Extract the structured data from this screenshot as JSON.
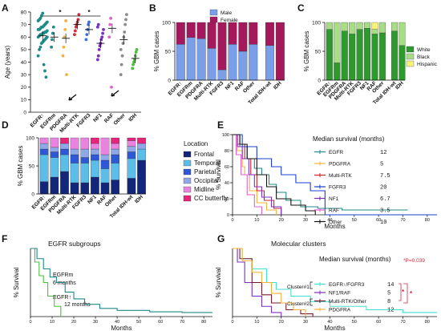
{
  "chart_data": [
    {
      "panel": "A",
      "type": "scatter",
      "ylabel": "Age (years)",
      "yticks": [
        0,
        10,
        20,
        30,
        40,
        50,
        60,
        70,
        80
      ],
      "ylim": [
        0,
        80
      ],
      "categories": [
        "EGFR↑",
        "EGFRm",
        "PDGFRA",
        "Multi-RTK",
        "FGFR3",
        "NF1",
        "RAF",
        "Other",
        "IDH"
      ],
      "colors": [
        "#1f8a86",
        "#1f8a86",
        "#f2b33d",
        "#d7263d",
        "#3c6fe0",
        "#7b2fbf",
        "#e35fcf",
        "#8a8a8a",
        "#48c23a"
      ],
      "means": [
        61,
        60,
        59,
        70,
        66,
        55,
        67,
        58,
        43
      ],
      "points": [
        [
          45,
          50,
          52,
          55,
          56,
          57,
          58,
          59,
          60,
          60,
          61,
          62,
          62,
          63,
          63,
          64,
          64,
          65,
          66,
          66,
          67,
          68,
          68,
          69,
          70,
          71,
          72,
          73,
          74,
          75,
          77,
          79,
          38,
          33,
          28
        ],
        [
          52,
          58,
          63,
          68
        ],
        [
          45,
          52,
          60,
          66,
          73,
          30
        ],
        [
          62,
          65,
          68,
          70,
          72,
          74,
          78
        ],
        [
          58,
          62,
          66,
          70,
          72
        ],
        [
          42,
          45,
          50,
          53,
          55,
          58,
          60,
          63,
          66,
          68,
          70
        ],
        [
          60,
          70,
          75,
          20
        ],
        [
          30,
          38,
          45,
          55,
          60,
          64,
          70,
          74,
          78,
          50
        ],
        [
          35,
          38,
          40,
          42,
          45,
          48,
          50
        ]
      ],
      "significance": "*"
    },
    {
      "panel": "B",
      "type": "bar",
      "ylabel": "% GBM cases",
      "yticks": [
        0,
        50,
        100
      ],
      "categories": [
        "EGFR↑",
        "EGFRm",
        "PDGFRA",
        "Multi-RTK",
        "FGFR3",
        "NF1",
        "RAF",
        "Other",
        "Total IDH-wt",
        "IDH"
      ],
      "series": [
        {
          "name": "Male",
          "color": "#7b9ee8",
          "values": [
            62,
            74,
            72,
            55,
            18,
            62,
            50,
            62,
            60,
            0
          ]
        },
        {
          "name": "Female",
          "color": "#a3195b",
          "values": [
            38,
            26,
            28,
            45,
            82,
            38,
            50,
            38,
            40,
            100
          ]
        }
      ]
    },
    {
      "panel": "C",
      "type": "bar",
      "ylabel": "% GBM cases",
      "yticks": [
        0,
        50,
        100
      ],
      "categories": [
        "EGFR↑",
        "EGFRm",
        "PDGFRA",
        "Multi-RTK",
        "FGFR3",
        "NF1",
        "RAF",
        "Other",
        "Total IDH-wt",
        "IDH"
      ],
      "series": [
        {
          "name": "White",
          "color": "#2e9a2e",
          "values": [
            88,
            30,
            85,
            80,
            88,
            90,
            80,
            82,
            85,
            60
          ]
        },
        {
          "name": "Black",
          "color": "#a8dd86",
          "values": [
            12,
            70,
            15,
            20,
            12,
            10,
            8,
            18,
            15,
            40
          ]
        },
        {
          "name": "Hispanic",
          "color": "#f6f27a",
          "values": [
            0,
            0,
            0,
            0,
            0,
            0,
            12,
            0,
            0,
            0
          ]
        }
      ]
    },
    {
      "panel": "D",
      "type": "bar",
      "ylabel": "% GBM cases",
      "yticks": [
        0,
        50,
        100
      ],
      "legend_title": "Location",
      "categories": [
        "EGFR↑",
        "EGFRm",
        "PDGFRA",
        "Multi-RTK",
        "FGFR3",
        "NF1",
        "RAF",
        "Other",
        "Total IDH-wt",
        "IDH"
      ],
      "series": [
        {
          "name": "Frontal",
          "color": "#13277a",
          "values": [
            22,
            30,
            40,
            20,
            20,
            30,
            20,
            25,
            28,
            60
          ]
        },
        {
          "name": "Temporal",
          "color": "#5bbde8",
          "values": [
            48,
            35,
            30,
            35,
            35,
            30,
            25,
            30,
            35,
            20
          ]
        },
        {
          "name": "Parietal",
          "color": "#2e58d6",
          "values": [
            10,
            10,
            10,
            15,
            10,
            10,
            15,
            15,
            12,
            0
          ]
        },
        {
          "name": "Occipital",
          "color": "#8ea8e8",
          "values": [
            10,
            8,
            10,
            10,
            15,
            10,
            10,
            10,
            10,
            10
          ]
        },
        {
          "name": "Midline",
          "color": "#e884e0",
          "values": [
            10,
            17,
            0,
            20,
            20,
            10,
            30,
            10,
            10,
            0
          ]
        },
        {
          "name": "CC butterfly",
          "color": "#e8247a",
          "values": [
            0,
            0,
            10,
            0,
            0,
            10,
            0,
            10,
            5,
            10
          ]
        }
      ]
    },
    {
      "panel": "E",
      "type": "line",
      "ylabel": "% Survival",
      "xlabel": "Months",
      "yticks": [
        0,
        20,
        40,
        60,
        80,
        100
      ],
      "xticks": [
        0,
        10,
        20,
        30,
        40,
        50,
        60,
        70,
        80
      ],
      "legend_title": "Median survival (months)",
      "series": [
        {
          "name": "EGFR",
          "median": "12",
          "color": "#1f8a86",
          "points": [
            [
              0,
              100
            ],
            [
              3,
              85
            ],
            [
              6,
              70
            ],
            [
              9,
              58
            ],
            [
              12,
              50
            ],
            [
              15,
              38
            ],
            [
              18,
              28
            ],
            [
              22,
              18
            ],
            [
              28,
              10
            ],
            [
              35,
              8
            ],
            [
              45,
              6
            ],
            [
              60,
              6
            ],
            [
              72,
              6
            ]
          ]
        },
        {
          "name": "PDGFRA",
          "median": "5",
          "color": "#f2b33d",
          "points": [
            [
              0,
              100
            ],
            [
              2,
              80
            ],
            [
              4,
              60
            ],
            [
              5,
              50
            ],
            [
              7,
              30
            ],
            [
              10,
              15
            ],
            [
              14,
              6
            ],
            [
              18,
              0
            ]
          ]
        },
        {
          "name": "Multi-RTK",
          "median": "7.5",
          "color": "#c3252d",
          "points": [
            [
              0,
              100
            ],
            [
              2,
              88
            ],
            [
              5,
              70
            ],
            [
              7.5,
              50
            ],
            [
              10,
              30
            ],
            [
              13,
              18
            ],
            [
              17,
              8
            ],
            [
              20,
              0
            ]
          ]
        },
        {
          "name": "FGFR3",
          "median": "20",
          "color": "#1a3fcf",
          "points": [
            [
              0,
              100
            ],
            [
              4,
              85
            ],
            [
              10,
              70
            ],
            [
              16,
              60
            ],
            [
              20,
              50
            ],
            [
              26,
              40
            ],
            [
              32,
              30
            ],
            [
              38,
              0
            ],
            [
              84,
              0
            ]
          ]
        },
        {
          "name": "NF1",
          "median": "6.7",
          "color": "#7b2fbf",
          "points": [
            [
              0,
              100
            ],
            [
              2,
              85
            ],
            [
              4,
              70
            ],
            [
              6.7,
              50
            ],
            [
              9,
              35
            ],
            [
              12,
              22
            ],
            [
              16,
              10
            ],
            [
              20,
              0
            ]
          ]
        },
        {
          "name": "RAF",
          "median": "3.5",
          "color": "#e35fcf",
          "points": [
            [
              0,
              100
            ],
            [
              1.5,
              75
            ],
            [
              3.5,
              50
            ],
            [
              6,
              25
            ],
            [
              9,
              10
            ],
            [
              12,
              0
            ]
          ]
        },
        {
          "name": "Other",
          "median": "10",
          "color": "#111111",
          "points": [
            [
              0,
              100
            ],
            [
              3,
              88
            ],
            [
              6,
              70
            ],
            [
              10,
              50
            ],
            [
              14,
              35
            ],
            [
              18,
              20
            ],
            [
              24,
              12
            ],
            [
              30,
              5
            ],
            [
              34,
              0
            ]
          ]
        }
      ]
    },
    {
      "panel": "F",
      "type": "line",
      "title": "EGFR subgroups",
      "ylabel": "% Survival",
      "xlabel": "Months",
      "xticks": [
        0,
        10,
        20,
        30,
        40,
        50,
        60,
        70,
        80
      ],
      "annotations": [
        {
          "text": "EGFRm",
          "sub": "6 months"
        },
        {
          "text": "EGFR↑",
          "sub": "12 months"
        }
      ],
      "series": [
        {
          "name": "EGFRm",
          "color": "#48c23a",
          "points": [
            [
              0,
              100
            ],
            [
              2,
              80
            ],
            [
              4,
              60
            ],
            [
              6,
              50
            ],
            [
              8,
              30
            ],
            [
              11,
              15
            ],
            [
              14,
              0
            ]
          ]
        },
        {
          "name": "EGFR↑",
          "color": "#1f8a86",
          "points": [
            [
              0,
              100
            ],
            [
              3,
              85
            ],
            [
              6,
              70
            ],
            [
              9,
              58
            ],
            [
              12,
              50
            ],
            [
              16,
              36
            ],
            [
              20,
              26
            ],
            [
              25,
              18
            ],
            [
              32,
              12
            ],
            [
              40,
              9
            ],
            [
              55,
              7
            ],
            [
              70,
              6
            ],
            [
              84,
              6
            ]
          ]
        }
      ]
    },
    {
      "panel": "G",
      "type": "line",
      "title": "Molecular clusters",
      "ylabel": "% Survival",
      "xlabel": "Months",
      "xticks": [
        0,
        10,
        20,
        30,
        40,
        50,
        60,
        70,
        80
      ],
      "legend_title": "Median survival (months)",
      "pvalue": "*P=0.039",
      "cluster_labels": [
        "Cluster#1",
        "Cluster#2"
      ],
      "series": [
        {
          "name": "EGFR↑/FGFR3",
          "median": "14",
          "color": "#40e0d0",
          "points": [
            [
              0,
              100
            ],
            [
              4,
              85
            ],
            [
              8,
              70
            ],
            [
              14,
              50
            ],
            [
              18,
              40
            ],
            [
              24,
              30
            ],
            [
              32,
              22
            ],
            [
              40,
              15
            ],
            [
              55,
              10
            ],
            [
              70,
              6
            ],
            [
              84,
              6
            ]
          ]
        },
        {
          "name": "NF1/RAF",
          "median": "5",
          "color": "#7b2fbf",
          "points": [
            [
              0,
              100
            ],
            [
              2,
              80
            ],
            [
              5,
              50
            ],
            [
              8,
              30
            ],
            [
              12,
              15
            ],
            [
              16,
              6
            ],
            [
              20,
              0
            ]
          ]
        },
        {
          "name": "Multi-RTK/Other",
          "median": "8",
          "color": "#7a1a2a",
          "points": [
            [
              0,
              100
            ],
            [
              3,
              85
            ],
            [
              8,
              50
            ],
            [
              12,
              32
            ],
            [
              16,
              20
            ],
            [
              22,
              10
            ],
            [
              28,
              4
            ],
            [
              33,
              0
            ]
          ]
        },
        {
          "name": "PDGFRA",
          "median": "12",
          "color": "#f2b33d",
          "points": [
            [
              0,
              100
            ],
            [
              4,
              82
            ],
            [
              8,
              65
            ],
            [
              12,
              50
            ],
            [
              16,
              34
            ],
            [
              20,
              20
            ],
            [
              25,
              10
            ],
            [
              30,
              0
            ]
          ]
        }
      ]
    }
  ]
}
